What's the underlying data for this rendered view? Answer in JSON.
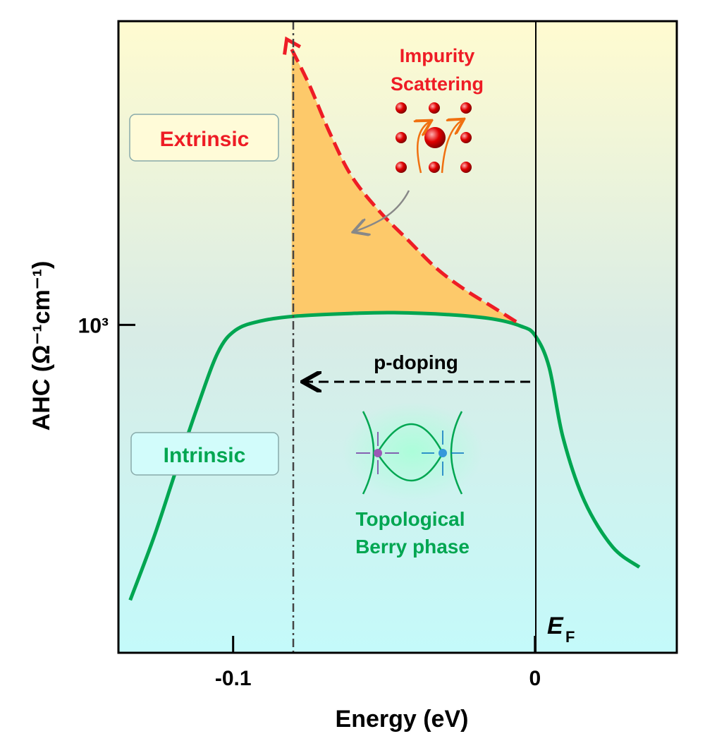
{
  "chart_data": {
    "type": "line",
    "x_label": "Energy (eV)",
    "y_label": "AHC (Ω⁻¹cm⁻¹)",
    "xlim": [
      -0.138,
      0.047
    ],
    "ylim": [
      88,
      9500
    ],
    "log_y": true,
    "xticks": [
      -0.1,
      0
    ],
    "yticks": [
      {
        "value": 1000,
        "label": "10³"
      }
    ],
    "series": [
      {
        "name": "Intrinsic",
        "color": "#00a651",
        "dashed": false,
        "x": [
          -0.1341,
          -0.1262,
          -0.1192,
          -0.1121,
          -0.1051,
          -0.0993,
          -0.0911,
          -0.0794,
          -0.0607,
          -0.0467,
          -0.028,
          -0.014,
          -0.0047,
          0,
          0.0047,
          0.0093,
          0.0164,
          0.0257,
          0.0346
        ],
        "values": [
          130,
          208,
          334,
          535,
          813,
          960,
          1028,
          1067,
          1089,
          1095,
          1078,
          1045,
          991,
          926,
          731,
          434,
          271,
          193,
          166
        ]
      },
      {
        "name": "Extrinsic",
        "color": "#ee1c25",
        "dashed": true,
        "x": [
          -0.0806,
          -0.0748,
          -0.0678,
          -0.0607,
          -0.0514,
          -0.0421,
          -0.0327,
          -0.0234,
          -0.014,
          -0.0047
        ],
        "values": [
          7710,
          5936,
          4115,
          3006,
          2314,
          1877,
          1523,
          1302,
          1142,
          1002
        ]
      }
    ],
    "fill_color": "#fdc96a",
    "annotations": {
      "impurity": [
        "Impurity",
        "Scattering"
      ],
      "topological": [
        "Topological",
        "Berry phase"
      ],
      "doping": "p-doping",
      "fermi": {
        "main": "E",
        "sub": "F"
      }
    }
  }
}
